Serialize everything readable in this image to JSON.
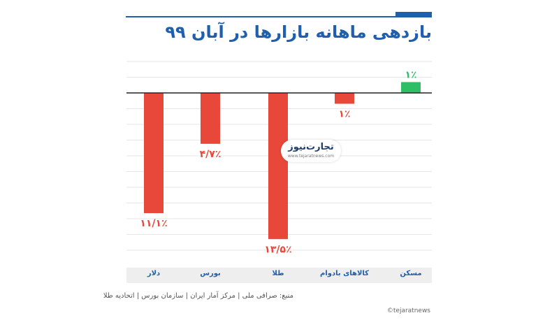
{
  "title": "بازدهی ماهانه بازارها در آبان ۹۹",
  "logo": {
    "name": "تجارت‌نیوز",
    "domain": "www.tejaratnews.com"
  },
  "source": "منبع: صرافی ملی | مرکز آمار ایران | سازمان بورس | اتحادیه طلا",
  "credit": "©tejaratnews",
  "colors": {
    "negative": "#e8483a",
    "positive": "#2dbe66",
    "accent": "#1f5fae"
  },
  "chart_data": {
    "type": "bar",
    "title": "بازدهی ماهانه بازارها در آبان ۹۹",
    "categories": [
      "دلار",
      "بورس",
      "طلا",
      "کالاهای بادوام",
      "مسکن"
    ],
    "values": [
      -11.1,
      -4.7,
      -13.5,
      -1,
      1
    ],
    "data_labels": [
      "۱۱/۱٪",
      "۴/۷٪",
      "۱۳/۵٪",
      "۱٪",
      "۱٪"
    ],
    "ylim": [
      -16,
      3
    ],
    "grid": true
  }
}
